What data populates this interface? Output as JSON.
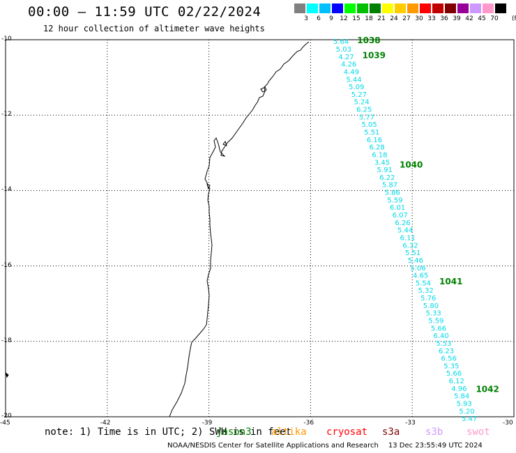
{
  "header": {
    "title": "00:00 — 11:59 UTC 02/22/2024",
    "subtitle": "12 hour collection of altimeter wave heights"
  },
  "color_scale": {
    "unit": "(ft)",
    "bins": [
      {
        "label": "3",
        "color": "#808080"
      },
      {
        "label": "6",
        "color": "#00ffff"
      },
      {
        "label": "9",
        "color": "#00c0ff"
      },
      {
        "label": "12",
        "color": "#0000ff"
      },
      {
        "label": "15",
        "color": "#00ff00"
      },
      {
        "label": "18",
        "color": "#00c000"
      },
      {
        "label": "21",
        "color": "#008000"
      },
      {
        "label": "24",
        "color": "#ffff00"
      },
      {
        "label": "27",
        "color": "#ffcc00"
      },
      {
        "label": "30",
        "color": "#ff9900"
      },
      {
        "label": "33",
        "color": "#ff0000"
      },
      {
        "label": "36",
        "color": "#c00000"
      },
      {
        "label": "39",
        "color": "#800000"
      },
      {
        "label": "42",
        "color": "#990099"
      },
      {
        "label": "45",
        "color": "#cc99ff"
      },
      {
        "label": "70",
        "color": "#ff99cc"
      },
      {
        "label": "",
        "color": "#000000"
      }
    ]
  },
  "map": {
    "lat_labels": [
      "-10",
      "-12",
      "-14",
      "-16",
      "-18",
      "-20"
    ],
    "lon_labels": [
      "-45",
      "-42",
      "-39",
      "-36",
      "-33",
      "-30"
    ],
    "lat_range": [
      -20,
      -10
    ],
    "lon_range": [
      -45,
      -30
    ],
    "track_color": "#00d8e8",
    "time_color": "#008000",
    "observations": [
      {
        "lat": -10.04,
        "swh": "5.64"
      },
      {
        "lat": -10.24,
        "swh": "5.03"
      },
      {
        "lat": -10.44,
        "swh": "4.27"
      },
      {
        "lat": -10.64,
        "swh": "4.26"
      },
      {
        "lat": -10.84,
        "swh": "4.49"
      },
      {
        "lat": -11.04,
        "swh": "5.44"
      },
      {
        "lat": -11.24,
        "swh": "5.09"
      },
      {
        "lat": -11.44,
        "swh": "5.27"
      },
      {
        "lat": -11.64,
        "swh": "5.24"
      },
      {
        "lat": -11.84,
        "swh": "6.25"
      },
      {
        "lat": -12.04,
        "swh": "5.77"
      },
      {
        "lat": -12.24,
        "swh": "5.05"
      },
      {
        "lat": -12.44,
        "swh": "5.51"
      },
      {
        "lat": -12.64,
        "swh": "6.16"
      },
      {
        "lat": -12.84,
        "swh": "6.28"
      },
      {
        "lat": -13.04,
        "swh": "6.18"
      },
      {
        "lat": -13.24,
        "swh": "3.45"
      },
      {
        "lat": -13.44,
        "swh": "5.91"
      },
      {
        "lat": -13.64,
        "swh": "6.22"
      },
      {
        "lat": -13.84,
        "swh": "5.87"
      },
      {
        "lat": -14.04,
        "swh": "5.86"
      },
      {
        "lat": -14.24,
        "swh": "5.59"
      },
      {
        "lat": -14.44,
        "swh": "6.01"
      },
      {
        "lat": -14.64,
        "swh": "6.07"
      },
      {
        "lat": -14.84,
        "swh": "6.26"
      },
      {
        "lat": -15.04,
        "swh": "5.44"
      },
      {
        "lat": -15.24,
        "swh": "6.11"
      },
      {
        "lat": -15.44,
        "swh": "6.32"
      },
      {
        "lat": -15.64,
        "swh": "5.51"
      },
      {
        "lat": -15.84,
        "swh": "5.46"
      },
      {
        "lat": -16.04,
        "swh": "5.06"
      },
      {
        "lat": -16.24,
        "swh": "4.65"
      },
      {
        "lat": -16.44,
        "swh": "5.54"
      },
      {
        "lat": -16.64,
        "swh": "5.32"
      },
      {
        "lat": -16.84,
        "swh": "5.76"
      },
      {
        "lat": -17.04,
        "swh": "5.80"
      },
      {
        "lat": -17.24,
        "swh": "5.33"
      },
      {
        "lat": -17.44,
        "swh": "5.59"
      },
      {
        "lat": -17.64,
        "swh": "5.66"
      },
      {
        "lat": -17.84,
        "swh": "6.40"
      },
      {
        "lat": -18.04,
        "swh": "5.53"
      },
      {
        "lat": -18.24,
        "swh": "6.23"
      },
      {
        "lat": -18.44,
        "swh": "6.56"
      },
      {
        "lat": -18.64,
        "swh": "5.35"
      },
      {
        "lat": -18.84,
        "swh": "5.66"
      },
      {
        "lat": -19.04,
        "swh": "6.12"
      },
      {
        "lat": -19.24,
        "swh": "4.96"
      },
      {
        "lat": -19.44,
        "swh": "5.84"
      },
      {
        "lat": -19.64,
        "swh": "5.93"
      },
      {
        "lat": -19.84,
        "swh": "5.20"
      },
      {
        "lat": -20.04,
        "swh": "5.47"
      }
    ],
    "time_labels": [
      {
        "lat": -10.0,
        "text": "1038"
      },
      {
        "lat": -10.4,
        "text": "1039"
      },
      {
        "lat": -13.3,
        "text": "1040"
      },
      {
        "lat": -16.4,
        "text": "1041"
      },
      {
        "lat": -19.25,
        "text": "1042"
      }
    ]
  },
  "footer": {
    "note": "note: 1) Time is in UTC; 2) SWH is in feet",
    "satellites": [
      {
        "name": "jason3",
        "color": "#008000"
      },
      {
        "name": "altika",
        "color": "#ff9900"
      },
      {
        "name": "cryosat",
        "color": "#ff0000"
      },
      {
        "name": "s3a",
        "color": "#800000"
      },
      {
        "name": "s3b",
        "color": "#cc99ff"
      },
      {
        "name": "swot",
        "color": "#ff99cc"
      }
    ],
    "credit": "NOAA/NESDIS Center for Satellite Applications and Research",
    "timestamp": "13 Dec 23:55:49 UTC 2024"
  }
}
